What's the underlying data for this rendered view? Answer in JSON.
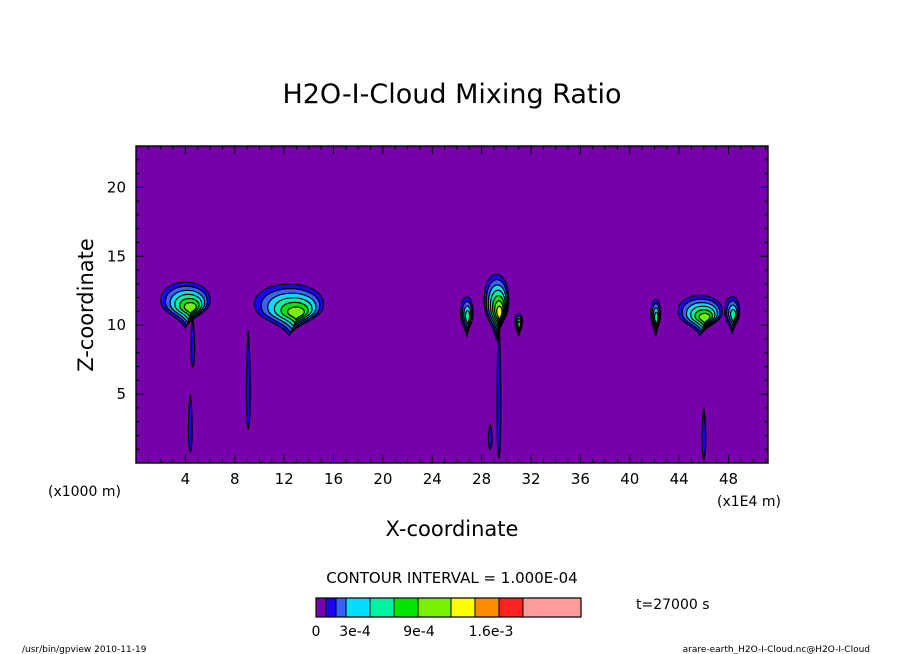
{
  "chart_data": {
    "type": "contour",
    "title": "H2O-I-Cloud Mixing Ratio",
    "xlabel": "X-coordinate",
    "ylabel": "Z-coordinate",
    "x_unit_left": "(x1000 m)",
    "x_unit_right": "(x1E4 m)",
    "x_ticks": [
      "4",
      "8",
      "12",
      "16",
      "20",
      "24",
      "28",
      "32",
      "36",
      "40",
      "44",
      "48"
    ],
    "y_ticks": [
      "5",
      "10",
      "15",
      "20"
    ],
    "xlim": [
      0,
      51.2
    ],
    "ylim": [
      0,
      23
    ],
    "contour_interval": "CONTOUR INTERVAL = 1.000E-04",
    "time_label": "t=27000 s",
    "colorbar_labels": [
      "0",
      "3e-4",
      "9e-4",
      "1.6e-3"
    ],
    "colorbar_levels": [
      0,
      0.0001,
      0.0002,
      0.0003,
      0.0004,
      0.0006,
      0.0009,
      0.0012,
      0.0014,
      0.0016,
      0.0018,
      0.002
    ],
    "palette": [
      "#7600aa",
      "#1a00ff",
      "#3860ff",
      "#00ddff",
      "#00f4a0",
      "#00e600",
      "#78f000",
      "#ffff00",
      "#ff8c00",
      "#ff2020",
      "#ff9c9c"
    ],
    "background_color": "#7600aa",
    "clouds": [
      {
        "x": 4.0,
        "z": 11.8,
        "rx": 2.0,
        "rz": 1.6,
        "max_level": 6
      },
      {
        "x": 12.4,
        "z": 11.5,
        "rx": 2.8,
        "rz": 1.8,
        "max_level": 6
      },
      {
        "x": 26.8,
        "z": 10.9,
        "rx": 0.5,
        "rz": 1.4,
        "max_level": 4
      },
      {
        "x": 29.2,
        "z": 11.8,
        "rx": 1.0,
        "rz": 2.3,
        "max_level": 7
      },
      {
        "x": 31.0,
        "z": 10.2,
        "rx": 0.3,
        "rz": 0.8,
        "max_level": 4
      },
      {
        "x": 42.1,
        "z": 10.8,
        "rx": 0.4,
        "rz": 1.3,
        "max_level": 4
      },
      {
        "x": 45.7,
        "z": 11.0,
        "rx": 1.8,
        "rz": 1.4,
        "max_level": 6
      },
      {
        "x": 48.3,
        "z": 11.0,
        "rx": 0.6,
        "rz": 1.3,
        "max_level": 4
      }
    ],
    "shafts": [
      {
        "x": 4.6,
        "z0": 7.0,
        "z1": 10.5
      },
      {
        "x": 4.4,
        "z0": 0.8,
        "z1": 5.0
      },
      {
        "x": 9.1,
        "z0": 2.5,
        "z1": 9.6
      },
      {
        "x": 28.7,
        "z0": 1.0,
        "z1": 2.8
      },
      {
        "x": 29.4,
        "z0": 0.4,
        "z1": 10.5
      },
      {
        "x": 46.0,
        "z0": 0.3,
        "z1": 4.0
      }
    ],
    "grid": false,
    "legend_position": "bottom"
  },
  "footer": {
    "left": "/usr/bin/gpview  2010-11-19",
    "right": "arare-earth_H2O-I-Cloud.nc@H2O-I-Cloud"
  }
}
